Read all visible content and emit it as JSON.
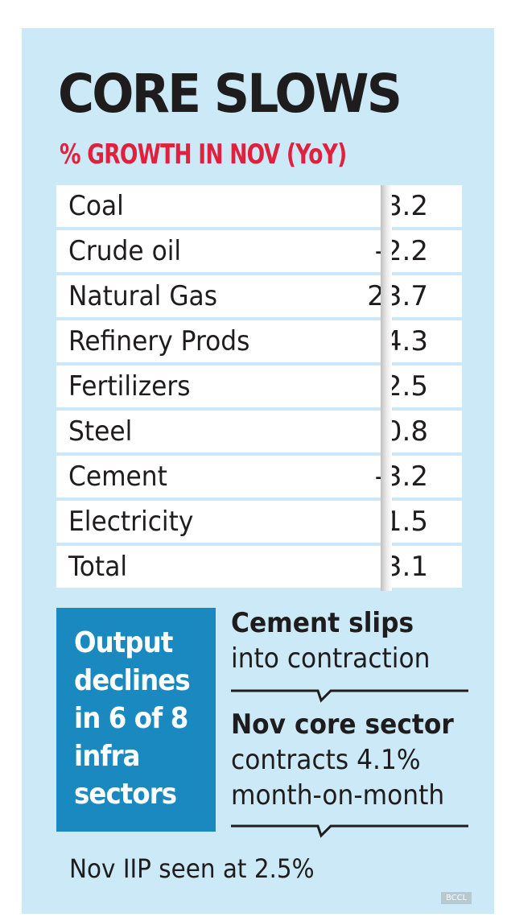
{
  "chart_data": {
    "type": "table",
    "title": "CORE SLOWS",
    "subtitle": "% GROWTH IN NOV (YoY)",
    "rows": [
      {
        "label": "Coal",
        "value": "8.2"
      },
      {
        "label": "Crude oil",
        "value": "-2.2"
      },
      {
        "label": "Natural Gas",
        "value": "23.7"
      },
      {
        "label": "Refinery Prods",
        "value": "4.3"
      },
      {
        "label": "Fertilizers",
        "value": "2.5"
      },
      {
        "label": "Steel",
        "value": "0.8"
      },
      {
        "label": "Cement",
        "value": "-3.2"
      },
      {
        "label": "Electricity",
        "value": "1.5"
      },
      {
        "label": "Total",
        "value": "3.1"
      }
    ]
  },
  "callout_box": {
    "lines": [
      "Output",
      "declines",
      "in 6 of 8",
      "infra",
      "sectors"
    ],
    "color": "#1a89c0"
  },
  "notes": [
    {
      "bold": "Cement slips",
      "rest": [
        "into contraction"
      ]
    },
    {
      "bold": "Nov core sector",
      "rest": [
        "contracts 4.1%",
        "month-on-month"
      ]
    }
  ],
  "footer": "Nov IIP seen at 2.5%",
  "watermark": "BCCL",
  "colors": {
    "background": "#cce9f7",
    "subtitle": "#e0203c"
  }
}
